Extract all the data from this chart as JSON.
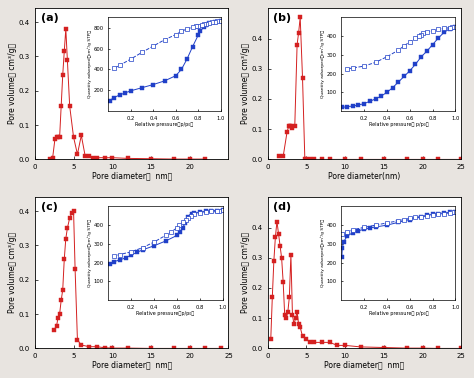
{
  "panels": [
    "(a)",
    "(b)",
    "(c)",
    "(d)"
  ],
  "red": "#d42020",
  "blue": "#2040c8",
  "fig_bg": "#e8e4e0",
  "pore_a": {
    "x": [
      2.0,
      2.3,
      2.6,
      2.8,
      3.0,
      3.2,
      3.4,
      3.6,
      3.8,
      4.0,
      4.2,
      4.5,
      5.0,
      5.5,
      6.0,
      6.5,
      7.0,
      7.5,
      8.0,
      9.0,
      10.0,
      12.0,
      15.0,
      18.0,
      20.0,
      22.0
    ],
    "y": [
      0.0,
      0.005,
      0.06,
      0.065,
      0.065,
      0.065,
      0.155,
      0.245,
      0.315,
      0.38,
      0.29,
      0.155,
      0.065,
      0.015,
      0.07,
      0.01,
      0.01,
      0.005,
      0.005,
      0.005,
      0.005,
      0.003,
      0.002,
      0.001,
      0.001,
      0.001
    ],
    "xlim": [
      0,
      25
    ],
    "ylim": [
      0,
      0.44
    ],
    "yticks": [
      0.0,
      0.1,
      0.2,
      0.3,
      0.4
    ],
    "xticks": [
      0,
      5,
      10,
      15,
      20
    ],
    "xlabel": "Pore diameter（  nm）"
  },
  "iso_a": {
    "p_ads": [
      0.01,
      0.05,
      0.1,
      0.15,
      0.2,
      0.3,
      0.4,
      0.5,
      0.6,
      0.65,
      0.7,
      0.75,
      0.8,
      0.82,
      0.85,
      0.87,
      0.9,
      0.95,
      1.0
    ],
    "q_ads": [
      100,
      130,
      155,
      175,
      195,
      225,
      255,
      290,
      340,
      400,
      500,
      620,
      730,
      770,
      810,
      830,
      845,
      860,
      865
    ],
    "p_des": [
      1.0,
      0.97,
      0.95,
      0.92,
      0.9,
      0.87,
      0.85,
      0.83,
      0.8,
      0.78,
      0.75,
      0.7,
      0.65,
      0.6,
      0.5,
      0.4,
      0.3,
      0.2,
      0.1,
      0.05
    ],
    "q_des": [
      865,
      862,
      858,
      852,
      845,
      840,
      833,
      828,
      822,
      815,
      805,
      790,
      765,
      735,
      685,
      625,
      565,
      500,
      440,
      410
    ],
    "xlim": [
      0.0,
      1.0
    ],
    "ylim": [
      0,
      900
    ],
    "yticks": [
      200,
      400,
      600,
      800
    ],
    "xticks": [
      0.2,
      0.4,
      0.6,
      0.8,
      1.0
    ],
    "ylabel": "Quantity adsorped（cm³/g STP）",
    "xlabel": "Relative pressure（p/p₀）"
  },
  "pore_b": {
    "x": [
      1.5,
      2.0,
      2.5,
      2.7,
      2.9,
      3.0,
      3.2,
      3.5,
      3.8,
      4.0,
      4.2,
      4.5,
      4.8,
      5.0,
      5.5,
      6.0,
      7.0,
      8.0,
      10.0,
      12.0,
      15.0,
      18.0,
      20.0,
      22.0,
      25.0
    ],
    "y": [
      0.01,
      0.01,
      0.09,
      0.11,
      0.11,
      0.11,
      0.105,
      0.11,
      0.38,
      0.42,
      0.47,
      0.27,
      0.0,
      0.0,
      0.0,
      0.0,
      0.0,
      0.0,
      0.0,
      0.0,
      0.0,
      0.0,
      0.0,
      0.0,
      0.0
    ],
    "xlim": [
      0,
      25
    ],
    "ylim": [
      0,
      0.5
    ],
    "yticks": [
      0.0,
      0.1,
      0.2,
      0.3,
      0.4
    ],
    "xticks": [
      0,
      5,
      10,
      15,
      20,
      25
    ],
    "xlabel": "Pore diameter(nm)"
  },
  "iso_b": {
    "p_ads": [
      0.01,
      0.05,
      0.1,
      0.15,
      0.2,
      0.25,
      0.3,
      0.35,
      0.4,
      0.45,
      0.5,
      0.55,
      0.6,
      0.65,
      0.7,
      0.75,
      0.8,
      0.85,
      0.9,
      0.95,
      1.0
    ],
    "q_ads": [
      20,
      23,
      27,
      32,
      40,
      52,
      65,
      80,
      100,
      125,
      155,
      185,
      215,
      250,
      290,
      320,
      355,
      390,
      420,
      440,
      450
    ],
    "p_des": [
      1.0,
      0.97,
      0.95,
      0.9,
      0.85,
      0.8,
      0.75,
      0.72,
      0.7,
      0.68,
      0.65,
      0.6,
      0.55,
      0.5,
      0.4,
      0.3,
      0.2,
      0.1,
      0.05
    ],
    "q_des": [
      450,
      448,
      445,
      441,
      436,
      430,
      422,
      415,
      408,
      400,
      388,
      370,
      348,
      325,
      290,
      260,
      240,
      230,
      225
    ],
    "xlim": [
      0.0,
      1.0
    ],
    "ylim": [
      0,
      500
    ],
    "yticks": [
      100,
      200,
      300,
      400
    ],
    "xticks": [
      0.2,
      0.4,
      0.6,
      0.8,
      1.0
    ],
    "ylabel": "Quantity adsorped（cm³/g STP）",
    "xlabel": "Relative pressure（ p/p₀）"
  },
  "pore_c": {
    "x": [
      2.5,
      2.8,
      3.0,
      3.2,
      3.4,
      3.6,
      3.8,
      4.0,
      4.2,
      4.5,
      4.8,
      5.0,
      5.2,
      5.5,
      6.0,
      7.0,
      8.0,
      9.0,
      10.0,
      12.0,
      15.0,
      18.0,
      20.0,
      22.0,
      24.0
    ],
    "y": [
      0.055,
      0.065,
      0.09,
      0.1,
      0.14,
      0.17,
      0.26,
      0.32,
      0.35,
      0.38,
      0.395,
      0.4,
      0.23,
      0.025,
      0.01,
      0.005,
      0.005,
      0.002,
      0.001,
      0.001,
      0.0,
      0.0,
      0.0,
      0.0,
      0.0
    ],
    "xlim": [
      0,
      25
    ],
    "ylim": [
      0,
      0.44
    ],
    "yticks": [
      0.0,
      0.1,
      0.2,
      0.3,
      0.4
    ],
    "xticks": [
      0,
      5,
      10,
      15,
      20,
      25
    ],
    "xlabel": "Pore diameter（  nm）"
  },
  "iso_c": {
    "p_ads": [
      0.01,
      0.05,
      0.1,
      0.15,
      0.2,
      0.25,
      0.3,
      0.4,
      0.5,
      0.6,
      0.63,
      0.65,
      0.67,
      0.7,
      0.73,
      0.75,
      0.8,
      0.85,
      0.9,
      0.95,
      1.0
    ],
    "q_ads": [
      195,
      205,
      215,
      225,
      240,
      255,
      268,
      290,
      315,
      345,
      365,
      385,
      410,
      445,
      460,
      465,
      470,
      473,
      476,
      478,
      480
    ],
    "p_des": [
      1.0,
      0.97,
      0.95,
      0.9,
      0.85,
      0.8,
      0.75,
      0.72,
      0.7,
      0.68,
      0.65,
      0.62,
      0.6,
      0.55,
      0.5,
      0.4,
      0.3,
      0.2,
      0.1,
      0.05
    ],
    "q_des": [
      480,
      478,
      476,
      473,
      470,
      465,
      458,
      450,
      440,
      430,
      415,
      400,
      385,
      365,
      345,
      310,
      280,
      258,
      243,
      235
    ],
    "xlim": [
      0.0,
      1.0
    ],
    "ylim": [
      0,
      500
    ],
    "yticks": [
      100,
      200,
      300,
      400
    ],
    "xticks": [
      0.2,
      0.4,
      0.6,
      0.8,
      1.0
    ],
    "ylabel": "Quantity adsorped（cm³/g STP）",
    "xlabel": "Relative pressure（p/p₀）"
  },
  "pore_d": {
    "x": [
      0.4,
      0.6,
      0.8,
      1.0,
      1.2,
      1.4,
      1.6,
      1.8,
      2.0,
      2.2,
      2.4,
      2.6,
      2.8,
      3.0,
      3.2,
      3.4,
      3.6,
      3.8,
      4.0,
      4.2,
      4.5,
      5.0,
      5.5,
      6.0,
      7.0,
      8.0,
      9.0,
      10.0,
      12.0,
      15.0,
      18.0,
      20.0,
      22.0,
      25.0
    ],
    "y": [
      0.03,
      0.17,
      0.29,
      0.37,
      0.42,
      0.38,
      0.34,
      0.3,
      0.22,
      0.11,
      0.1,
      0.12,
      0.17,
      0.31,
      0.11,
      0.08,
      0.1,
      0.12,
      0.08,
      0.07,
      0.04,
      0.03,
      0.02,
      0.02,
      0.02,
      0.02,
      0.01,
      0.01,
      0.005,
      0.003,
      0.001,
      0.001,
      0.0,
      0.0
    ],
    "xlim": [
      0,
      25
    ],
    "ylim": [
      0,
      0.5
    ],
    "yticks": [
      0.0,
      0.1,
      0.2,
      0.3,
      0.4
    ],
    "xticks": [
      0,
      5,
      10,
      15,
      20,
      25
    ],
    "xlabel": "Pore diameter（  nm）"
  },
  "iso_d": {
    "p_ads": [
      0.005,
      0.01,
      0.02,
      0.05,
      0.1,
      0.15,
      0.2,
      0.25,
      0.3,
      0.4,
      0.5,
      0.6,
      0.7,
      0.75,
      0.8,
      0.85,
      0.9,
      0.95,
      1.0
    ],
    "q_ads": [
      230,
      280,
      310,
      340,
      360,
      370,
      378,
      385,
      390,
      400,
      415,
      430,
      445,
      452,
      458,
      462,
      465,
      468,
      470
    ],
    "p_des": [
      1.0,
      0.97,
      0.95,
      0.9,
      0.85,
      0.8,
      0.75,
      0.7,
      0.65,
      0.6,
      0.55,
      0.5,
      0.4,
      0.3,
      0.2,
      0.1,
      0.05,
      0.01
    ],
    "q_des": [
      470,
      468,
      466,
      462,
      458,
      454,
      450,
      446,
      441,
      436,
      430,
      423,
      412,
      400,
      388,
      375,
      365,
      355
    ],
    "xlim": [
      0.0,
      1.0
    ],
    "ylim": [
      0,
      500
    ],
    "yticks": [
      100,
      200,
      300,
      400
    ],
    "xticks": [
      0.2,
      0.4,
      0.6,
      0.8,
      1.0
    ],
    "ylabel": "Quantity adsorped（cm³/g STP）",
    "xlabel": "Relative pressure（ p/p₀）"
  }
}
